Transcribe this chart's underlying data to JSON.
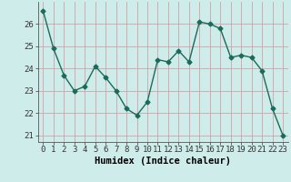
{
  "x": [
    0,
    1,
    2,
    3,
    4,
    5,
    6,
    7,
    8,
    9,
    10,
    11,
    12,
    13,
    14,
    15,
    16,
    17,
    18,
    19,
    20,
    21,
    22,
    23
  ],
  "y": [
    26.6,
    24.9,
    23.7,
    23.0,
    23.2,
    24.1,
    23.6,
    23.0,
    22.2,
    21.9,
    22.5,
    24.4,
    24.3,
    24.8,
    24.3,
    26.1,
    26.0,
    25.8,
    24.5,
    24.6,
    24.5,
    23.9,
    22.2,
    21.0
  ],
  "xlabel": "Humidex (Indice chaleur)",
  "ylim": [
    20.7,
    27.0
  ],
  "yticks": [
    21,
    22,
    23,
    24,
    25,
    26
  ],
  "xticks": [
    0,
    1,
    2,
    3,
    4,
    5,
    6,
    7,
    8,
    9,
    10,
    11,
    12,
    13,
    14,
    15,
    16,
    17,
    18,
    19,
    20,
    21,
    22,
    23
  ],
  "line_color": "#1a6b5a",
  "marker": "D",
  "marker_size": 2.5,
  "bg_color": "#ceecea",
  "grid_color_major": "#d4a0a8",
  "grid_color_minor": "#d4a0a8",
  "label_fontsize": 7.5,
  "tick_fontsize": 6.5
}
